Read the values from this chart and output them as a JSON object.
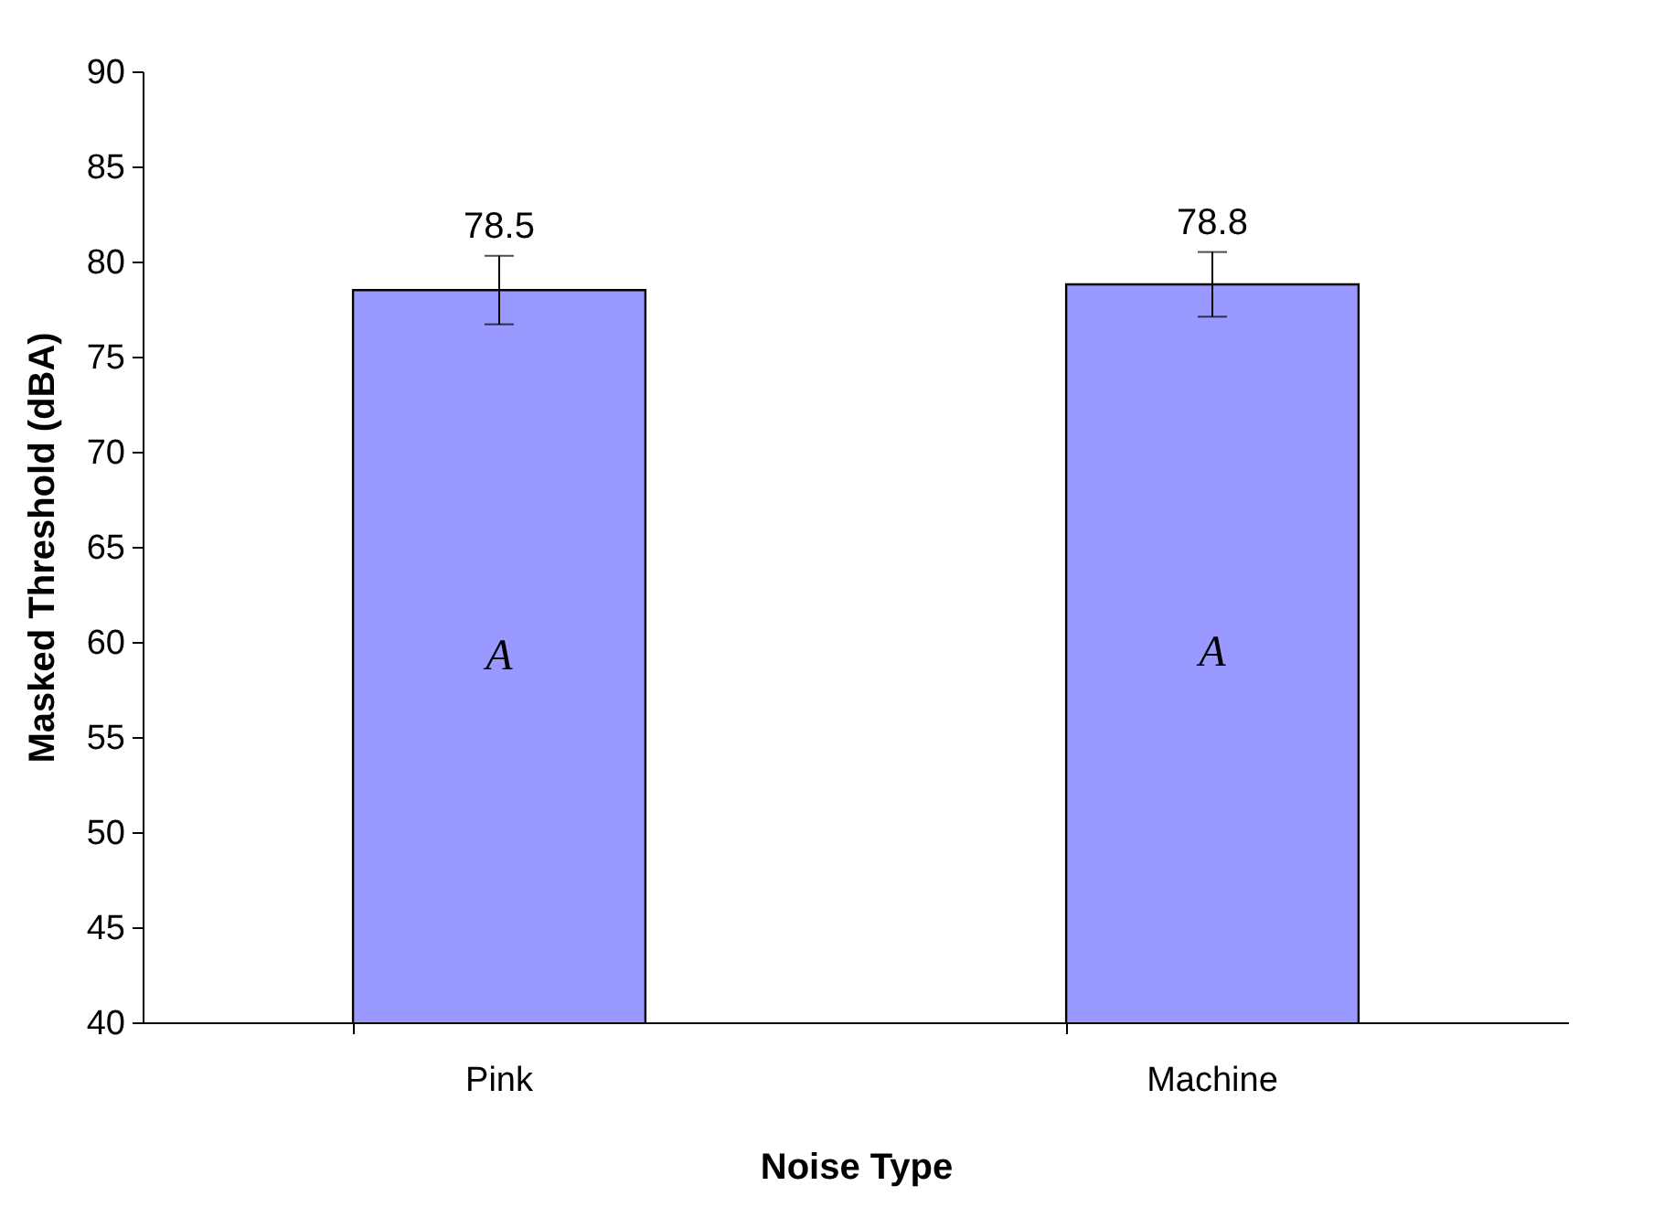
{
  "chart_data": {
    "type": "bar",
    "xlabel": "Noise Type",
    "ylabel": "Masked Threshold (dBA)",
    "categories": [
      "Pink",
      "Machine"
    ],
    "values": [
      78.5,
      78.8
    ],
    "errors": [
      1.8,
      1.7
    ],
    "color": "#9999ff",
    "data_labels": true,
    "ylim": [
      40,
      90
    ],
    "yticks": [
      40,
      45,
      50,
      55,
      60,
      65,
      70,
      75,
      80,
      85,
      90
    ],
    "grid": false,
    "annotations": [
      "A",
      "A"
    ]
  }
}
